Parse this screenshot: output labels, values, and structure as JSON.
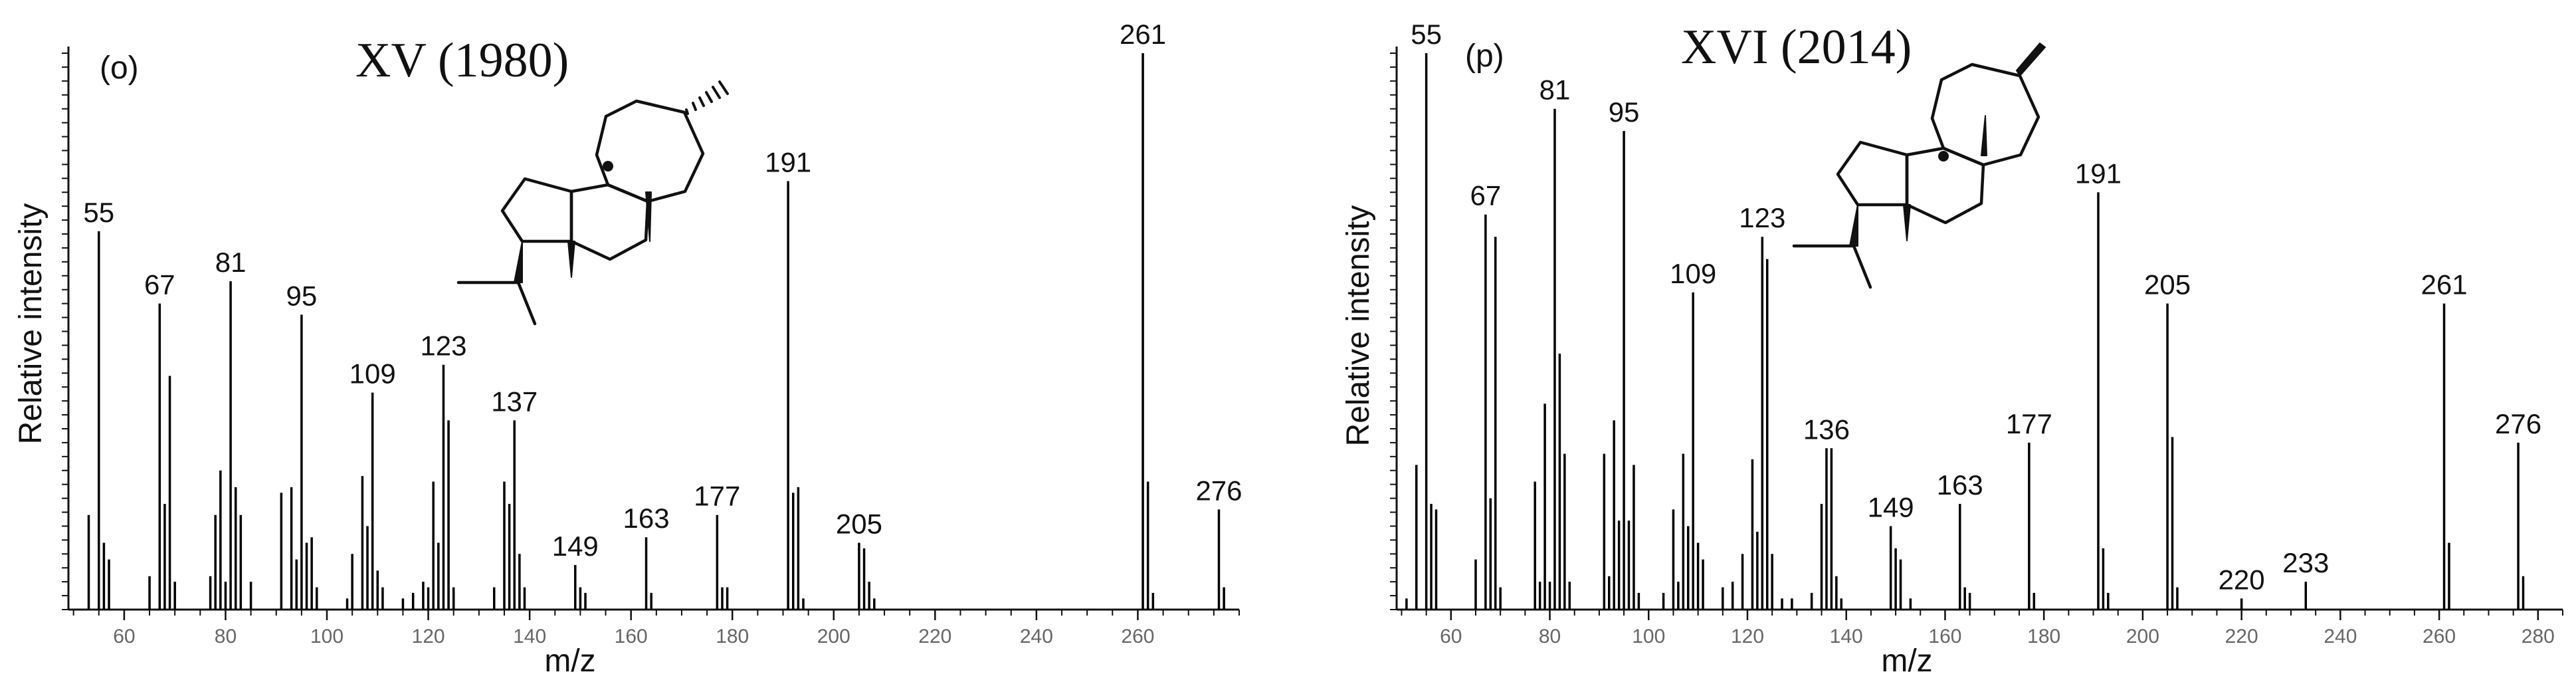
{
  "colors": {
    "stick": "#000000",
    "axis": "#111111",
    "tick_label": "#666666",
    "text": "#111111",
    "structure": "#111111"
  },
  "chart_data": [
    {
      "type": "bar",
      "panel_label": "(o)",
      "title": "XV (1980)",
      "xlabel": "m/z",
      "ylabel": "Relative intensity",
      "xlim": [
        49,
        280
      ],
      "ylim": [
        0,
        100
      ],
      "xticks": [
        60,
        80,
        100,
        120,
        140,
        160,
        180,
        200,
        220,
        240,
        260
      ],
      "grid": false,
      "legend": "none",
      "peaks": [
        {
          "mz": 53,
          "y": 17
        },
        {
          "mz": 55,
          "y": 68,
          "label": "55"
        },
        {
          "mz": 56,
          "y": 12
        },
        {
          "mz": 57,
          "y": 9
        },
        {
          "mz": 65,
          "y": 6
        },
        {
          "mz": 67,
          "y": 55,
          "label": "67"
        },
        {
          "mz": 68,
          "y": 19
        },
        {
          "mz": 69,
          "y": 42
        },
        {
          "mz": 70,
          "y": 5
        },
        {
          "mz": 77,
          "y": 6
        },
        {
          "mz": 78,
          "y": 17
        },
        {
          "mz": 79,
          "y": 25
        },
        {
          "mz": 80,
          "y": 5
        },
        {
          "mz": 81,
          "y": 59,
          "label": "81"
        },
        {
          "mz": 82,
          "y": 22
        },
        {
          "mz": 83,
          "y": 17
        },
        {
          "mz": 85,
          "y": 5
        },
        {
          "mz": 91,
          "y": 21
        },
        {
          "mz": 93,
          "y": 22
        },
        {
          "mz": 94,
          "y": 9
        },
        {
          "mz": 95,
          "y": 53,
          "label": "95"
        },
        {
          "mz": 96,
          "y": 12
        },
        {
          "mz": 97,
          "y": 13
        },
        {
          "mz": 98,
          "y": 4
        },
        {
          "mz": 104,
          "y": 2
        },
        {
          "mz": 105,
          "y": 10
        },
        {
          "mz": 107,
          "y": 24
        },
        {
          "mz": 108,
          "y": 15
        },
        {
          "mz": 109,
          "y": 39,
          "label": "109"
        },
        {
          "mz": 110,
          "y": 7
        },
        {
          "mz": 111,
          "y": 4
        },
        {
          "mz": 115,
          "y": 2
        },
        {
          "mz": 117,
          "y": 3
        },
        {
          "mz": 119,
          "y": 5
        },
        {
          "mz": 120,
          "y": 4
        },
        {
          "mz": 121,
          "y": 23
        },
        {
          "mz": 122,
          "y": 12
        },
        {
          "mz": 123,
          "y": 44,
          "label": "123"
        },
        {
          "mz": 124,
          "y": 34
        },
        {
          "mz": 125,
          "y": 4
        },
        {
          "mz": 133,
          "y": 4
        },
        {
          "mz": 135,
          "y": 23
        },
        {
          "mz": 136,
          "y": 19
        },
        {
          "mz": 137,
          "y": 34,
          "label": "137"
        },
        {
          "mz": 138,
          "y": 10
        },
        {
          "mz": 139,
          "y": 4
        },
        {
          "mz": 149,
          "y": 8,
          "label": "149"
        },
        {
          "mz": 150,
          "y": 4
        },
        {
          "mz": 151,
          "y": 3
        },
        {
          "mz": 163,
          "y": 13,
          "label": "163"
        },
        {
          "mz": 164,
          "y": 3
        },
        {
          "mz": 177,
          "y": 17,
          "label": "177"
        },
        {
          "mz": 178,
          "y": 4
        },
        {
          "mz": 179,
          "y": 4
        },
        {
          "mz": 191,
          "y": 77,
          "label": "191"
        },
        {
          "mz": 192,
          "y": 21
        },
        {
          "mz": 193,
          "y": 22
        },
        {
          "mz": 194,
          "y": 2
        },
        {
          "mz": 205,
          "y": 12,
          "label": "205"
        },
        {
          "mz": 206,
          "y": 11
        },
        {
          "mz": 207,
          "y": 5
        },
        {
          "mz": 208,
          "y": 2
        },
        {
          "mz": 261,
          "y": 100,
          "label": "261"
        },
        {
          "mz": 262,
          "y": 23
        },
        {
          "mz": 263,
          "y": 3
        },
        {
          "mz": 276,
          "y": 18,
          "label": "276"
        },
        {
          "mz": 277,
          "y": 4
        }
      ]
    },
    {
      "type": "bar",
      "panel_label": "(p)",
      "title": "XVI (2014)",
      "xlabel": "m/z",
      "ylabel": "Relative intensity",
      "xlim": [
        49,
        285
      ],
      "ylim": [
        0,
        100
      ],
      "xticks": [
        60,
        80,
        100,
        120,
        140,
        160,
        180,
        200,
        220,
        240,
        260,
        280
      ],
      "grid": false,
      "legend": "none",
      "peaks": [
        {
          "mz": 51,
          "y": 2
        },
        {
          "mz": 53,
          "y": 26
        },
        {
          "mz": 55,
          "y": 100,
          "label": "55"
        },
        {
          "mz": 56,
          "y": 19
        },
        {
          "mz": 57,
          "y": 18
        },
        {
          "mz": 65,
          "y": 9
        },
        {
          "mz": 67,
          "y": 71,
          "label": "67"
        },
        {
          "mz": 68,
          "y": 20
        },
        {
          "mz": 69,
          "y": 67
        },
        {
          "mz": 70,
          "y": 4
        },
        {
          "mz": 77,
          "y": 23
        },
        {
          "mz": 78,
          "y": 5
        },
        {
          "mz": 79,
          "y": 37
        },
        {
          "mz": 80,
          "y": 5
        },
        {
          "mz": 81,
          "y": 90,
          "label": "81"
        },
        {
          "mz": 82,
          "y": 46
        },
        {
          "mz": 83,
          "y": 28
        },
        {
          "mz": 84,
          "y": 5
        },
        {
          "mz": 91,
          "y": 28
        },
        {
          "mz": 92,
          "y": 6
        },
        {
          "mz": 93,
          "y": 34
        },
        {
          "mz": 94,
          "y": 16
        },
        {
          "mz": 95,
          "y": 86,
          "label": "95"
        },
        {
          "mz": 96,
          "y": 16
        },
        {
          "mz": 97,
          "y": 26
        },
        {
          "mz": 98,
          "y": 3
        },
        {
          "mz": 103,
          "y": 3
        },
        {
          "mz": 105,
          "y": 18
        },
        {
          "mz": 106,
          "y": 5
        },
        {
          "mz": 107,
          "y": 28
        },
        {
          "mz": 108,
          "y": 15
        },
        {
          "mz": 109,
          "y": 57,
          "label": "109"
        },
        {
          "mz": 110,
          "y": 12
        },
        {
          "mz": 111,
          "y": 9
        },
        {
          "mz": 115,
          "y": 4
        },
        {
          "mz": 117,
          "y": 5
        },
        {
          "mz": 119,
          "y": 10
        },
        {
          "mz": 121,
          "y": 27
        },
        {
          "mz": 122,
          "y": 14
        },
        {
          "mz": 123,
          "y": 67,
          "label": "123"
        },
        {
          "mz": 124,
          "y": 63
        },
        {
          "mz": 125,
          "y": 10
        },
        {
          "mz": 127,
          "y": 2
        },
        {
          "mz": 129,
          "y": 2
        },
        {
          "mz": 133,
          "y": 3
        },
        {
          "mz": 135,
          "y": 19
        },
        {
          "mz": 136,
          "y": 29,
          "label": "136"
        },
        {
          "mz": 137,
          "y": 29
        },
        {
          "mz": 138,
          "y": 6
        },
        {
          "mz": 139,
          "y": 2
        },
        {
          "mz": 149,
          "y": 15,
          "label": "149"
        },
        {
          "mz": 150,
          "y": 11
        },
        {
          "mz": 151,
          "y": 9
        },
        {
          "mz": 153,
          "y": 2
        },
        {
          "mz": 163,
          "y": 19,
          "label": "163"
        },
        {
          "mz": 164,
          "y": 4
        },
        {
          "mz": 165,
          "y": 3
        },
        {
          "mz": 177,
          "y": 30,
          "label": "177"
        },
        {
          "mz": 178,
          "y": 3
        },
        {
          "mz": 191,
          "y": 75,
          "label": "191"
        },
        {
          "mz": 192,
          "y": 11
        },
        {
          "mz": 193,
          "y": 3
        },
        {
          "mz": 205,
          "y": 55,
          "label": "205"
        },
        {
          "mz": 206,
          "y": 31
        },
        {
          "mz": 207,
          "y": 4
        },
        {
          "mz": 220,
          "y": 2,
          "label": "220"
        },
        {
          "mz": 233,
          "y": 5,
          "label": "233"
        },
        {
          "mz": 261,
          "y": 55,
          "label": "261"
        },
        {
          "mz": 262,
          "y": 12
        },
        {
          "mz": 276,
          "y": 30,
          "label": "276"
        },
        {
          "mz": 277,
          "y": 6
        }
      ]
    }
  ]
}
